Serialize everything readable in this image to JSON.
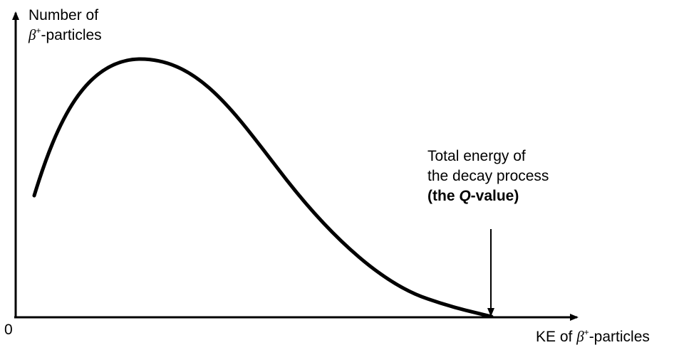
{
  "chart_data": {
    "type": "line",
    "y_label": {
      "line1": "Number of",
      "symbol": "β",
      "sup": "+",
      "rest": "-particles"
    },
    "x_label": {
      "prefix": "KE of ",
      "symbol": "β",
      "sup": "+",
      "rest": "-particles"
    },
    "origin_label": "0",
    "annotation": {
      "line1": "Total energy of",
      "line2": "the decay process",
      "open": "(the ",
      "q": "Q",
      "close": "-value)"
    }
  }
}
